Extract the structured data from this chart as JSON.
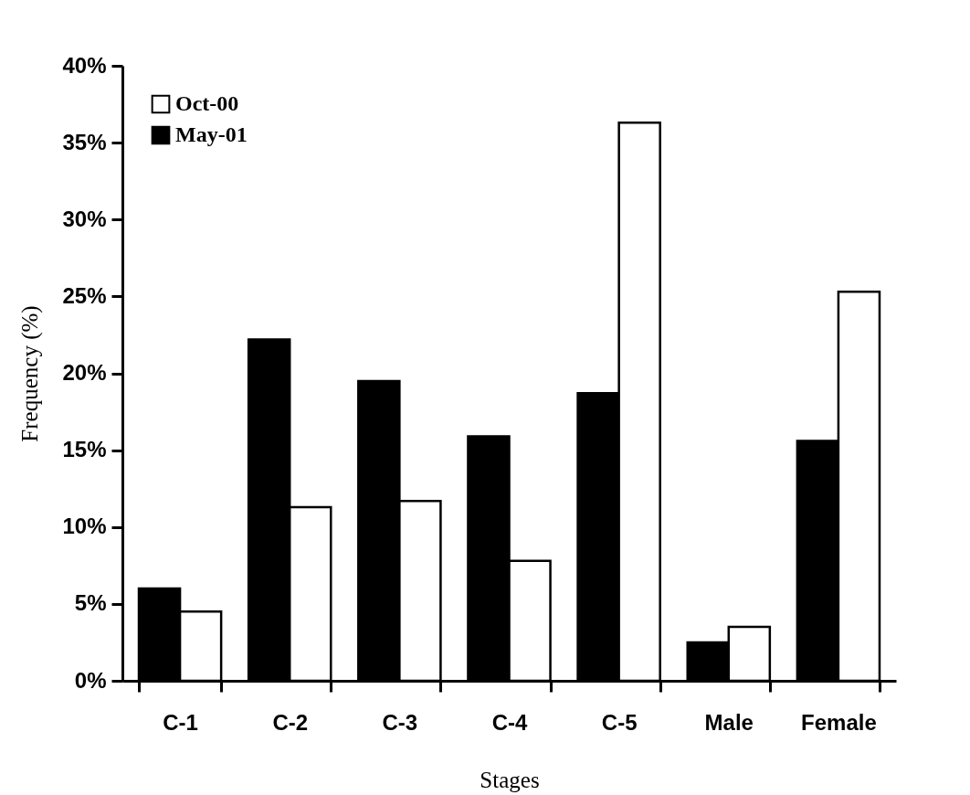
{
  "chart_data": {
    "type": "bar",
    "xlabel": "Stages",
    "ylabel": "Frequency (%)",
    "categories": [
      "C-1",
      "C-2",
      "C-3",
      "C-4",
      "C-5",
      "Male",
      "Female"
    ],
    "series": [
      {
        "name": "May-01",
        "color": "#000000",
        "values": [
          6.0,
          22.2,
          19.5,
          15.9,
          18.7,
          2.5,
          15.6
        ]
      },
      {
        "name": "Oct-00",
        "color": "#ffffff",
        "values": [
          4.5,
          11.3,
          11.7,
          7.8,
          36.3,
          3.5,
          25.3
        ]
      }
    ],
    "ylim": [
      0,
      40
    ],
    "yticks": [
      {
        "value": 0,
        "label": "0%"
      },
      {
        "value": 5,
        "label": "5%"
      },
      {
        "value": 10,
        "label": "10%"
      },
      {
        "value": 15,
        "label": "15%"
      },
      {
        "value": 20,
        "label": "20%"
      },
      {
        "value": 25,
        "label": "25%"
      },
      {
        "value": 30,
        "label": "30%"
      },
      {
        "value": 35,
        "label": "35%"
      },
      {
        "value": 40,
        "label": "40%"
      }
    ],
    "grid": false,
    "legend": "top left"
  }
}
